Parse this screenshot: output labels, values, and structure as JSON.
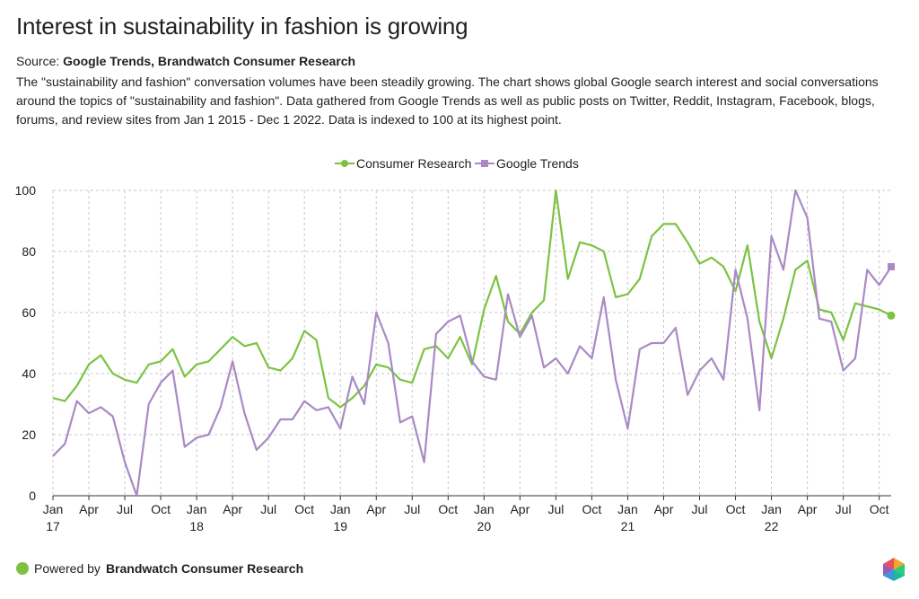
{
  "header": {
    "title": "Interest in sustainability in fashion is growing",
    "source_label": "Source: ",
    "source_value": "Google Trends, Brandwatch Consumer Research",
    "description": "The \"sustainability and fashion\" conversation volumes have been steadily growing. The chart shows global Google search interest and social conversations around the topics of \"sustainability and fashion\". Data gathered from Google Trends as well as public posts on Twitter, Reddit, Instagram, Facebook, blogs, forums, and review sites from Jan 1 2015 - Dec 1 2022. Data is indexed to 100 at its highest point."
  },
  "footer": {
    "powered_label": "Powered by ",
    "powered_value": "Brandwatch Consumer Research",
    "dot_color": "#7cc242"
  },
  "chart_data": {
    "type": "line",
    "title": "Interest in sustainability in fashion is growing",
    "ylim": [
      0,
      100
    ],
    "yticks": [
      0,
      20,
      40,
      60,
      80,
      100
    ],
    "grid": true,
    "legend_position": "top-center",
    "x_tick_labels": [
      {
        "index": 0,
        "label": "Jan",
        "year": "17"
      },
      {
        "index": 3,
        "label": "Apr",
        "year": ""
      },
      {
        "index": 6,
        "label": "Jul",
        "year": ""
      },
      {
        "index": 9,
        "label": "Oct",
        "year": ""
      },
      {
        "index": 12,
        "label": "Jan",
        "year": "18"
      },
      {
        "index": 15,
        "label": "Apr",
        "year": ""
      },
      {
        "index": 18,
        "label": "Jul",
        "year": ""
      },
      {
        "index": 21,
        "label": "Oct",
        "year": ""
      },
      {
        "index": 24,
        "label": "Jan",
        "year": "19"
      },
      {
        "index": 27,
        "label": "Apr",
        "year": ""
      },
      {
        "index": 30,
        "label": "Jul",
        "year": ""
      },
      {
        "index": 33,
        "label": "Oct",
        "year": ""
      },
      {
        "index": 36,
        "label": "Jan",
        "year": "20"
      },
      {
        "index": 39,
        "label": "Apr",
        "year": ""
      },
      {
        "index": 42,
        "label": "Jul",
        "year": ""
      },
      {
        "index": 45,
        "label": "Oct",
        "year": ""
      },
      {
        "index": 48,
        "label": "Jan",
        "year": "21"
      },
      {
        "index": 51,
        "label": "Apr",
        "year": ""
      },
      {
        "index": 54,
        "label": "Jul",
        "year": ""
      },
      {
        "index": 57,
        "label": "Oct",
        "year": ""
      },
      {
        "index": 60,
        "label": "Jan",
        "year": "22"
      },
      {
        "index": 63,
        "label": "Apr",
        "year": ""
      },
      {
        "index": 66,
        "label": "Jul",
        "year": ""
      },
      {
        "index": 69,
        "label": "Oct",
        "year": ""
      }
    ],
    "series": [
      {
        "name": "Consumer Research",
        "color": "#7cc242",
        "marker": "circle",
        "values": [
          32,
          31,
          36,
          43,
          46,
          40,
          38,
          37,
          43,
          44,
          48,
          39,
          43,
          44,
          48,
          52,
          49,
          50,
          42,
          41,
          45,
          54,
          51,
          32,
          29,
          32,
          36,
          43,
          42,
          38,
          37,
          48,
          49,
          45,
          52,
          43,
          61,
          72,
          57,
          53,
          60,
          64,
          100,
          71,
          83,
          82,
          80,
          65,
          66,
          71,
          85,
          89,
          89,
          83,
          76,
          78,
          75,
          67,
          82,
          57,
          45,
          58,
          74,
          77,
          61,
          60,
          51,
          63,
          62,
          61,
          59
        ]
      },
      {
        "name": "Google Trends",
        "color": "#a98ac4",
        "marker": "square",
        "values": [
          13,
          17,
          31,
          27,
          29,
          26,
          11,
          0,
          30,
          37,
          41,
          16,
          19,
          20,
          29,
          44,
          27,
          15,
          19,
          25,
          25,
          31,
          28,
          29,
          22,
          39,
          30,
          60,
          50,
          24,
          26,
          11,
          53,
          57,
          59,
          44,
          39,
          38,
          66,
          52,
          59,
          42,
          45,
          40,
          49,
          45,
          65,
          38,
          22,
          48,
          50,
          50,
          55,
          33,
          41,
          45,
          38,
          74,
          58,
          28,
          85,
          74,
          100,
          91,
          58,
          57,
          41,
          45,
          74,
          69,
          75
        ]
      }
    ]
  }
}
